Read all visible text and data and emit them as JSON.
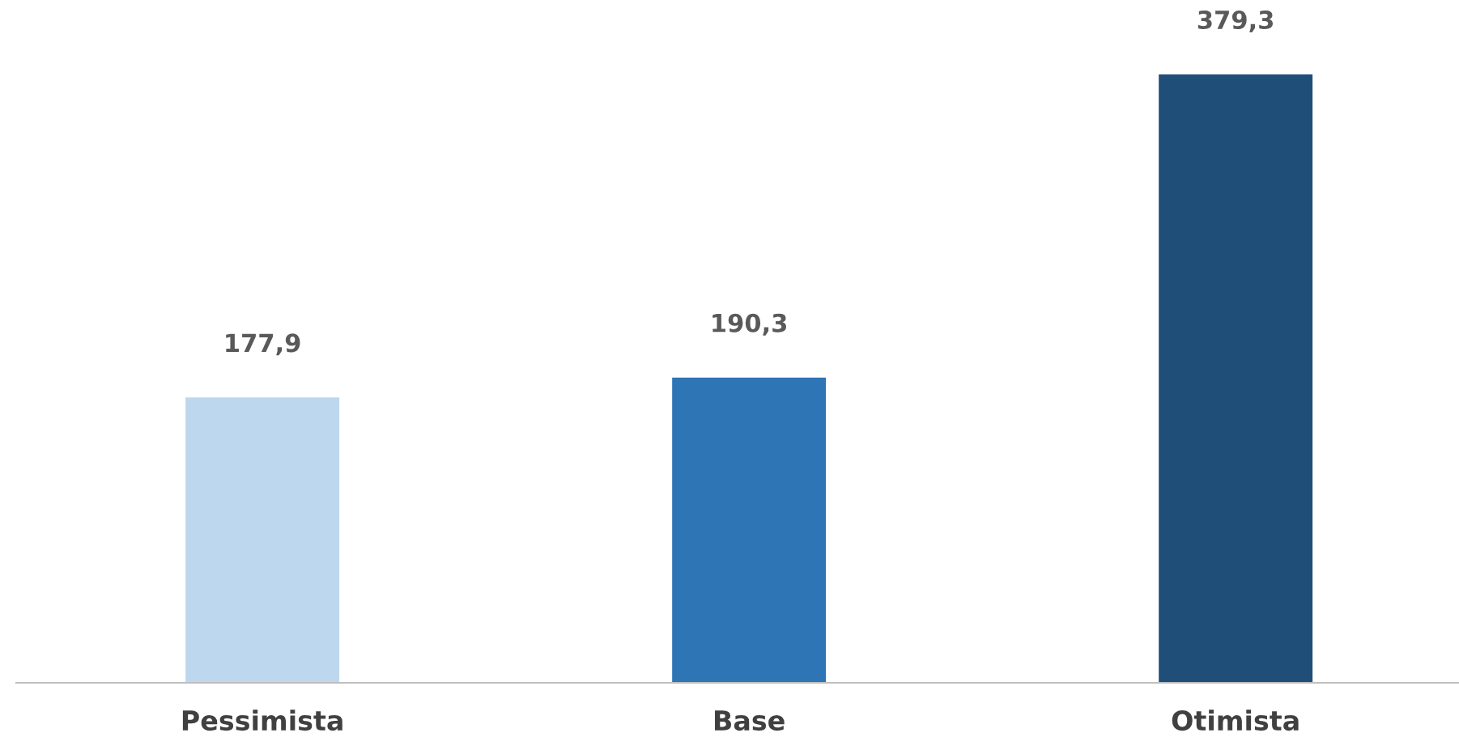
{
  "chart_data": {
    "type": "bar",
    "categories": [
      "Pessimista",
      "Base",
      "Otimista"
    ],
    "values": [
      177.9,
      190.3,
      379.3
    ],
    "colors": [
      "#bdd7ee",
      "#2e75b6",
      "#1f4e79"
    ],
    "value_labels": [
      "177,9",
      "190,3",
      "379,3"
    ],
    "grid": false,
    "legend": false
  }
}
